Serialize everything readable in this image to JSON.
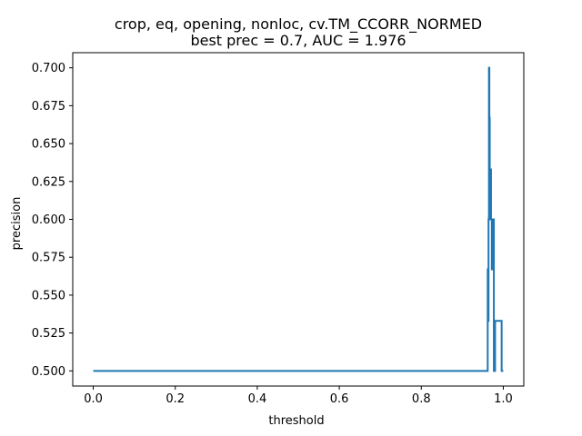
{
  "chart_data": {
    "type": "line",
    "title_line1": "crop, eq, opening, nonloc, cv.TM_CCORR_NORMED",
    "title_line2": "best prec = 0.7, AUC = 1.976",
    "xlabel": "threshold",
    "ylabel": "precision",
    "xlim": [
      -0.05,
      1.05
    ],
    "ylim": [
      0.49,
      0.71
    ],
    "xticks": [
      0.0,
      0.2,
      0.4,
      0.6,
      0.8,
      1.0
    ],
    "xtick_labels": [
      "0.0",
      "0.2",
      "0.4",
      "0.6",
      "0.8",
      "1.0"
    ],
    "yticks": [
      0.5,
      0.525,
      0.55,
      0.575,
      0.6,
      0.625,
      0.65,
      0.675,
      0.7
    ],
    "ytick_labels": [
      "0.500",
      "0.525",
      "0.550",
      "0.575",
      "0.600",
      "0.625",
      "0.650",
      "0.675",
      "0.700"
    ],
    "grid": false,
    "line_color": "#1f77b4",
    "series": [
      {
        "x": [
          0.0,
          0.962,
          0.962,
          0.963,
          0.963,
          0.964,
          0.964,
          0.965,
          0.965,
          0.966,
          0.966,
          0.967,
          0.967,
          0.968,
          0.968,
          0.969,
          0.969,
          0.97,
          0.97,
          0.972,
          0.972,
          0.973,
          0.973,
          0.975,
          0.975,
          0.976,
          0.976,
          0.977,
          0.977,
          0.98,
          0.98,
          0.996,
          0.996,
          1.0
        ],
        "y": [
          0.5,
          0.5,
          0.567,
          0.567,
          0.533,
          0.533,
          0.6,
          0.6,
          0.7,
          0.7,
          0.667,
          0.667,
          0.633,
          0.633,
          0.6,
          0.6,
          0.633,
          0.633,
          0.6,
          0.6,
          0.567,
          0.567,
          0.6,
          0.6,
          0.567,
          0.567,
          0.6,
          0.6,
          0.5,
          0.5,
          0.533,
          0.533,
          0.5,
          0.5
        ]
      }
    ]
  }
}
